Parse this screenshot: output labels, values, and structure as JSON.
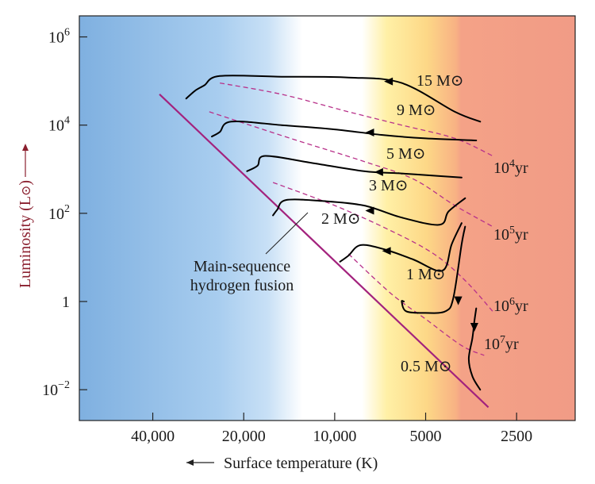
{
  "chart_data": {
    "type": "line",
    "x_scale": "log",
    "y_scale": "log",
    "xlabel": "Surface temperature (K)",
    "ylabel": "Luminosity (L⊙)",
    "xlim": [
      70000,
      1600
    ],
    "ylim": [
      0.002,
      3000000
    ],
    "x_ticks": [
      {
        "value": 40000,
        "label": "40,000"
      },
      {
        "value": 20000,
        "label": "20,000"
      },
      {
        "value": 10000,
        "label": "10,000"
      },
      {
        "value": 5000,
        "label": "5000"
      },
      {
        "value": 2500,
        "label": "2500"
      }
    ],
    "y_ticks": [
      {
        "value": 1000000,
        "base": "10",
        "exp": "6"
      },
      {
        "value": 10000,
        "base": "10",
        "exp": "4"
      },
      {
        "value": 100,
        "base": "10",
        "exp": "2"
      },
      {
        "value": 1,
        "base": "1",
        "exp": ""
      },
      {
        "value": 0.01,
        "base": "10",
        "exp": "−2"
      }
    ],
    "main_sequence": {
      "label": "Main-sequence hydrogen fusion",
      "label_lines": [
        "Main-sequence",
        "hydrogen fusion"
      ],
      "points": [
        [
          38000,
          50000
        ],
        [
          3100,
          0.004
        ]
      ]
    },
    "tracks": [
      {
        "mass": "15 M⊙",
        "points": [
          [
            3300,
            12000
          ],
          [
            4000,
            20000
          ],
          [
            6000,
            90000
          ],
          [
            9000,
            120000
          ],
          [
            15000,
            125000
          ],
          [
            24000,
            130000
          ],
          [
            27000,
            80000
          ],
          [
            29000,
            60000
          ],
          [
            31000,
            40000
          ]
        ]
      },
      {
        "mass": "9 M⊙",
        "points": [
          [
            3400,
            4500
          ],
          [
            5000,
            5000
          ],
          [
            7000,
            6000
          ],
          [
            10000,
            8000
          ],
          [
            15000,
            10000
          ],
          [
            22000,
            12000
          ],
          [
            24000,
            7000
          ],
          [
            25500,
            5500
          ]
        ]
      },
      {
        "mass": "5 M⊙",
        "points": [
          [
            3800,
            650
          ],
          [
            4500,
            700
          ],
          [
            6000,
            800
          ],
          [
            8000,
            900
          ],
          [
            12000,
            1400
          ],
          [
            17000,
            2000
          ],
          [
            18000,
            1200
          ],
          [
            19500,
            900
          ]
        ]
      },
      {
        "mass": "3 M⊙",
        "points": [
          [
            3700,
            220
          ],
          [
            4200,
            110
          ],
          [
            4500,
            55
          ],
          [
            6000,
            80
          ],
          [
            8000,
            150
          ],
          [
            11000,
            190
          ],
          [
            14500,
            200
          ],
          [
            15500,
            120
          ],
          [
            16000,
            90
          ]
        ]
      },
      {
        "mass": "2 M⊙",
        "points": [
          [
            3800,
            60
          ],
          [
            4100,
            20
          ],
          [
            4400,
            5
          ],
          [
            5500,
            9
          ],
          [
            6800,
            15
          ],
          [
            8200,
            19
          ],
          [
            9000,
            11
          ],
          [
            9600,
            8
          ]
        ]
      },
      {
        "mass": "1 M⊙",
        "points": [
          [
            3700,
            50
          ],
          [
            3800,
            20
          ],
          [
            4050,
            1.2
          ],
          [
            4300,
            0.6
          ],
          [
            5000,
            0.55
          ],
          [
            5800,
            0.6
          ],
          [
            6000,
            1
          ],
          [
            5900,
            1
          ]
        ]
      },
      {
        "mass": "0.5 M⊙",
        "points": [
          [
            3400,
            0.7
          ],
          [
            3450,
            0.35
          ],
          [
            3500,
            0.15
          ],
          [
            3600,
            0.05
          ],
          [
            3500,
            0.02
          ],
          [
            3300,
            0.01
          ]
        ]
      }
    ],
    "isochrones": [
      {
        "label": "10⁴yr",
        "base": "10",
        "exp": "4",
        "points": [
          [
            24000,
            90000
          ],
          [
            15000,
            50000
          ],
          [
            9000,
            20000
          ],
          [
            6000,
            10000
          ],
          [
            4000,
            5000
          ],
          [
            3000,
            2000
          ]
        ]
      },
      {
        "label": "10⁵yr",
        "base": "10",
        "exp": "5",
        "points": [
          [
            26000,
            20000
          ],
          [
            14000,
            5000
          ],
          [
            8000,
            1500
          ],
          [
            5500,
            600
          ],
          [
            4000,
            150
          ],
          [
            3000,
            50
          ]
        ]
      },
      {
        "label": "10⁶yr",
        "base": "10",
        "exp": "6",
        "points": [
          [
            16000,
            500
          ],
          [
            10000,
            150
          ],
          [
            6500,
            40
          ],
          [
            4700,
            12
          ],
          [
            3700,
            3
          ],
          [
            3000,
            0.6
          ]
        ]
      },
      {
        "label": "10⁷yr",
        "base": "10",
        "exp": "7",
        "points": [
          [
            9000,
            12
          ],
          [
            6500,
            1.5
          ],
          [
            5000,
            0.4
          ],
          [
            3800,
            0.1
          ],
          [
            3200,
            0.06
          ]
        ]
      }
    ],
    "background": "spectral gradient: blue (hot) to white to yellow to orange/red (cool)",
    "colors": {
      "main_sequence": "#a3227d",
      "isochrone": "#b8318a",
      "track": "#000000",
      "ylabel": "#8a1f2e"
    }
  },
  "labels": {
    "ylabel_main": "Luminosity (L",
    "ylabel_sym": "⊙",
    "ylabel_close": ")",
    "xlabel": "Surface temperature (K)"
  }
}
